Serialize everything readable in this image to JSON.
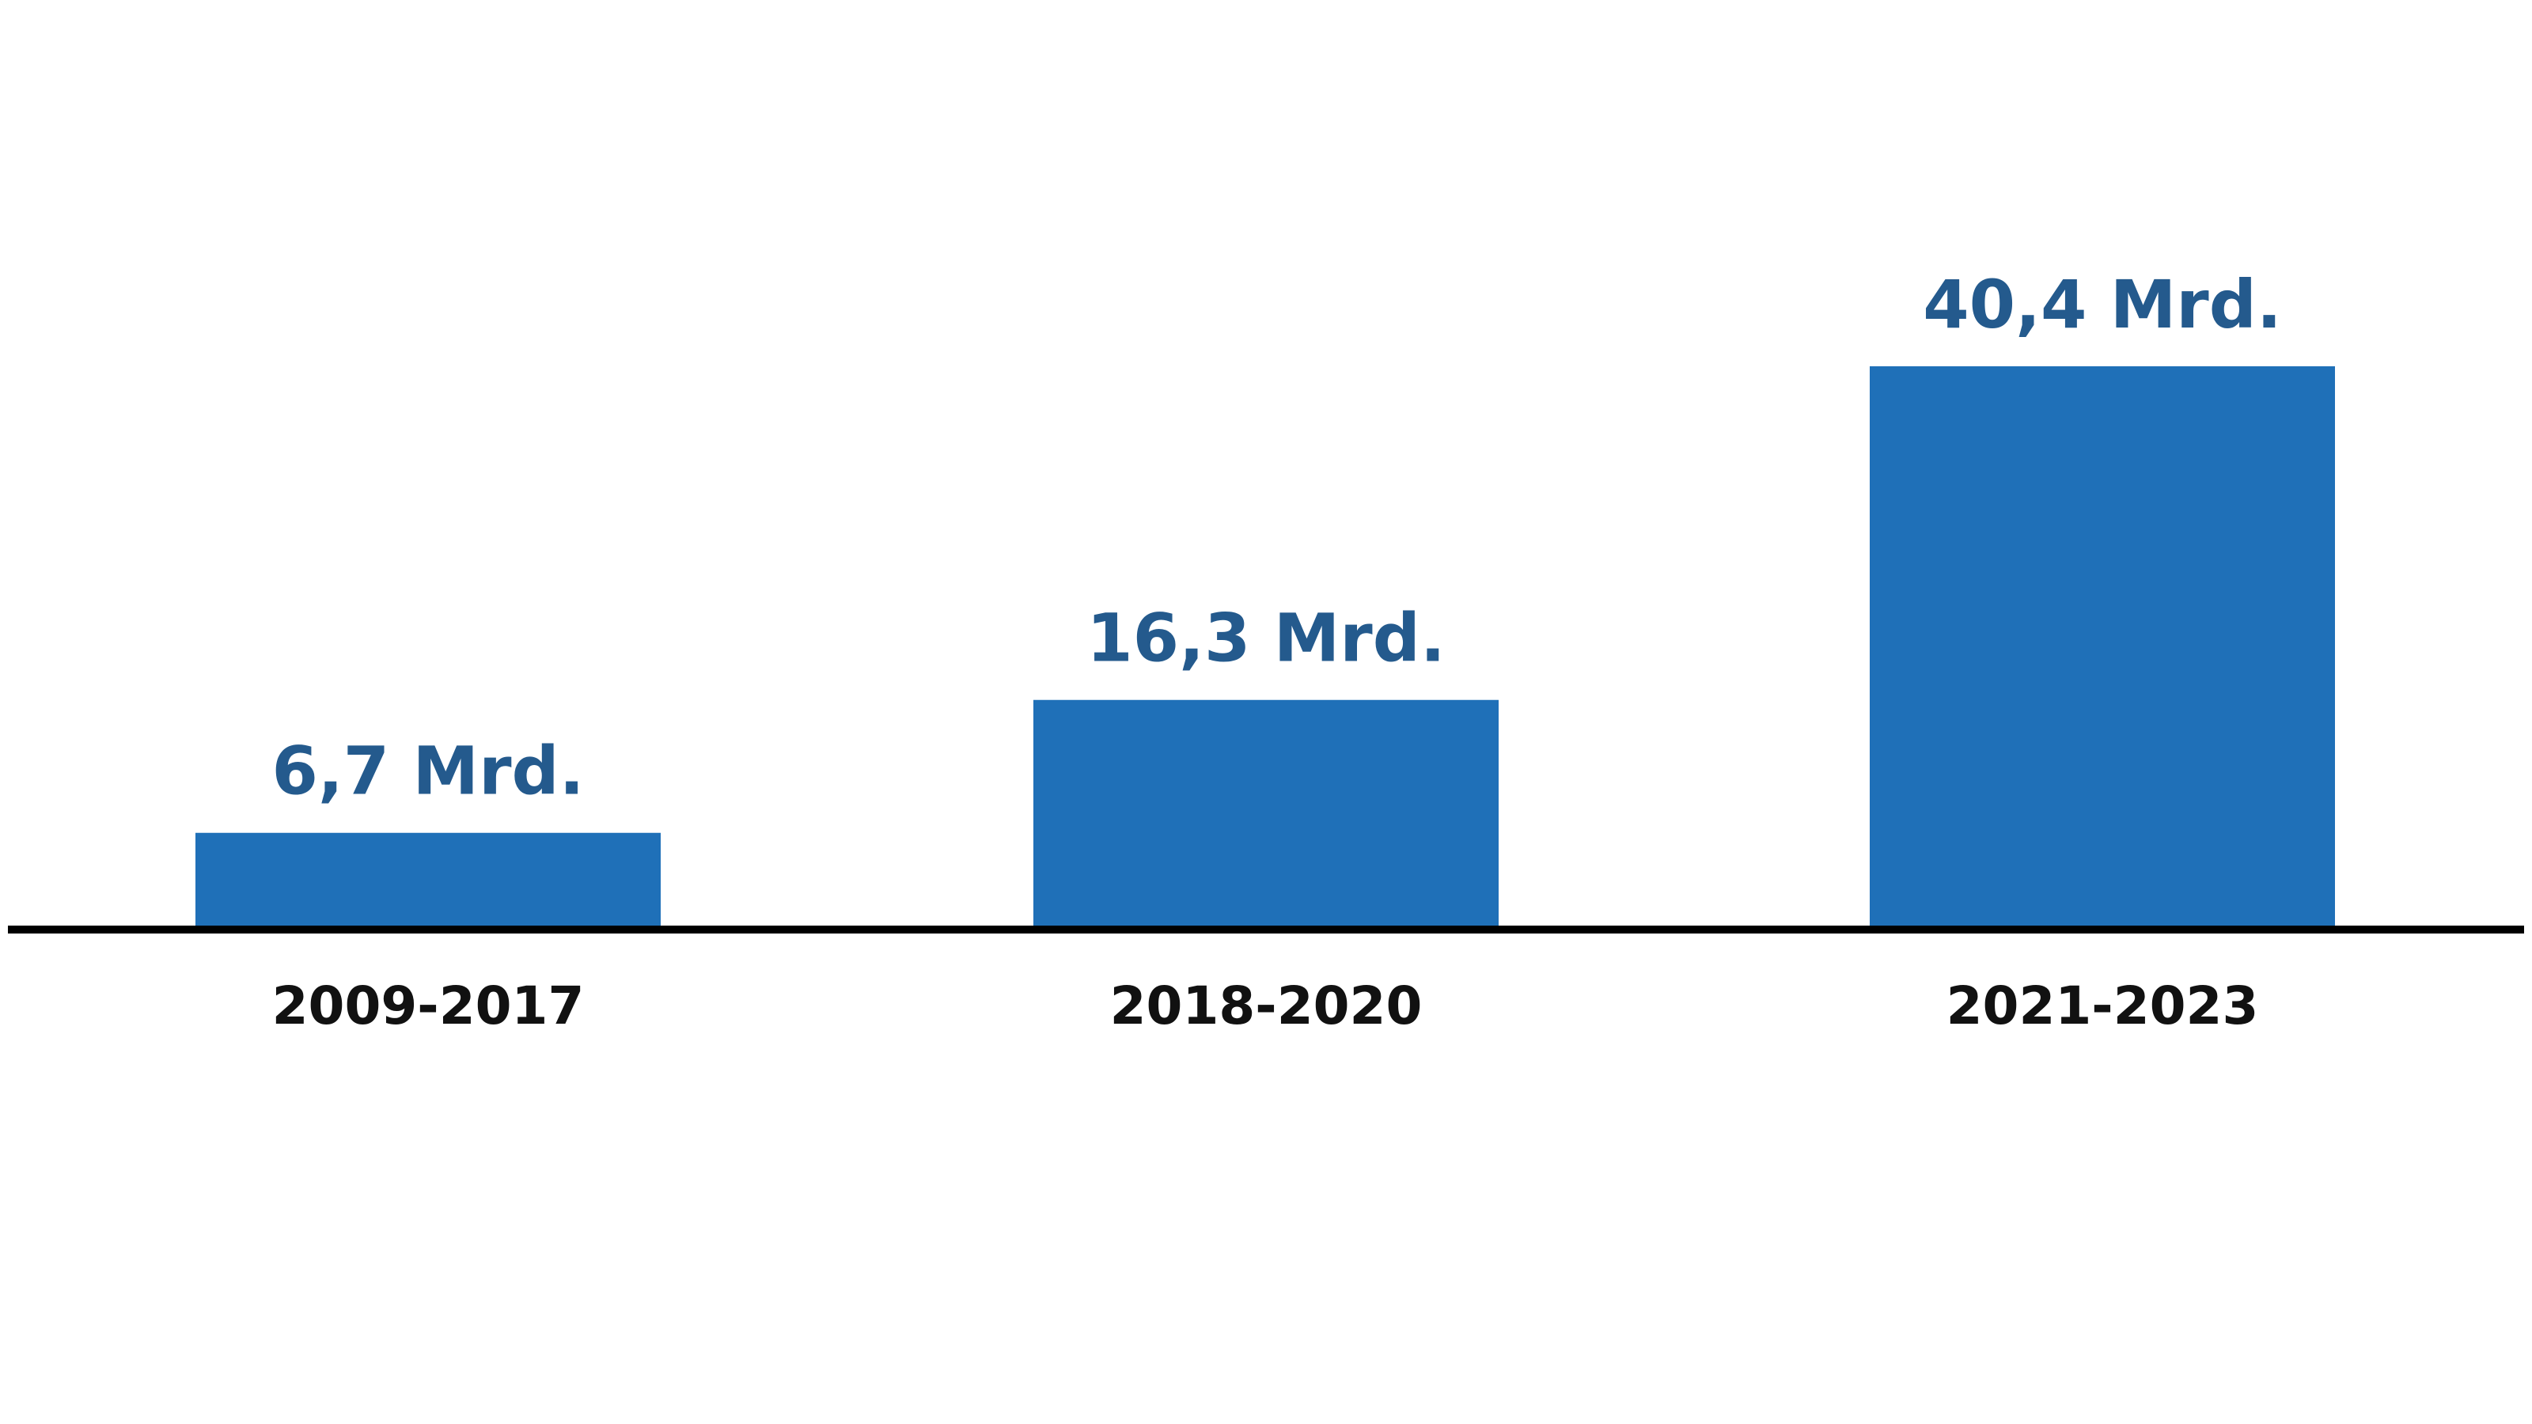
{
  "chart_data": {
    "type": "bar",
    "categories": [
      "2009-2017",
      "2018-2020",
      "2021-2023"
    ],
    "values": [
      6.7,
      16.3,
      40.4
    ],
    "value_labels": [
      "6,7 Mrd.",
      "16,3 Mrd.",
      "40,4 Mrd."
    ],
    "color": "#1f70b8"
  }
}
